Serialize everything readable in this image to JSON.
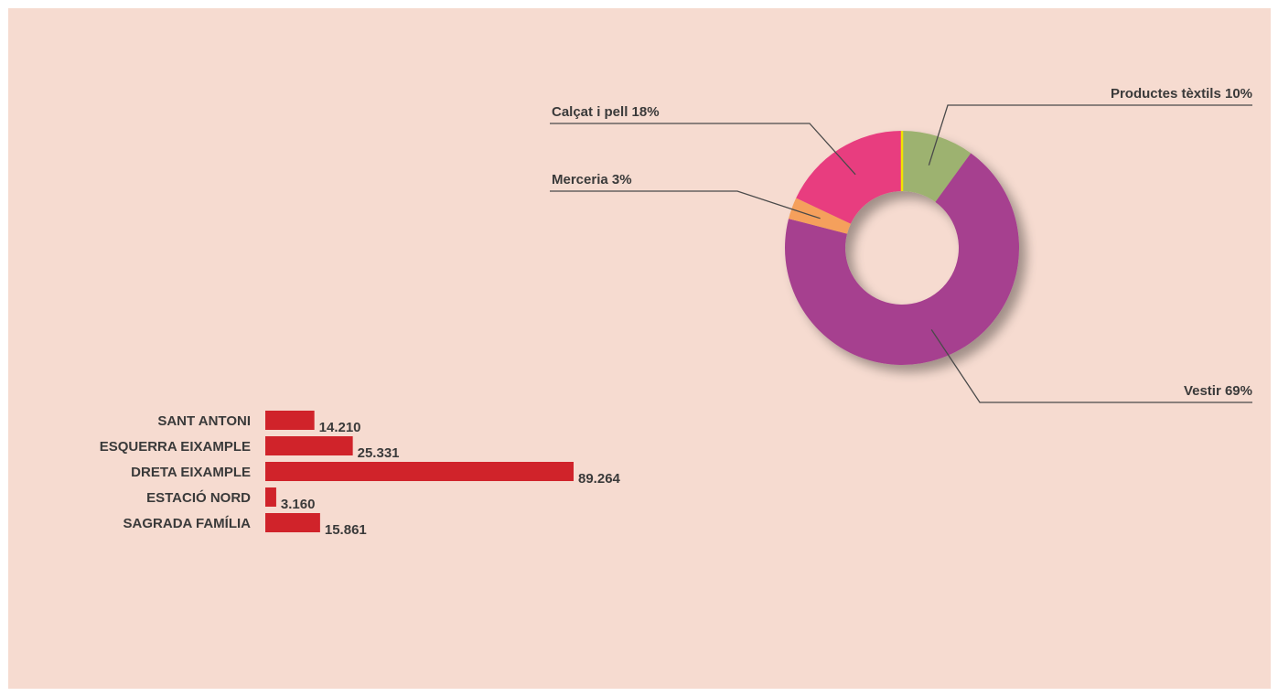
{
  "chart_data": [
    {
      "type": "pie",
      "donut": true,
      "slices": [
        {
          "label": "Productes tèxtils 10%",
          "value": 10,
          "color": "#9db26f"
        },
        {
          "label": "Vestir 69%",
          "value": 69,
          "color": "#a6408f"
        },
        {
          "label": "Merceria 3%",
          "value": 3,
          "color": "#f5a05c"
        },
        {
          "label": "Calçat i pell 18%",
          "value": 18,
          "color": "#e83d7f"
        }
      ],
      "start_marker_color": "#f2e200"
    },
    {
      "type": "bar",
      "orientation": "horizontal",
      "categories": [
        "SANT ANTONI",
        "ESQUERRA EIXAMPLE",
        "DRETA EIXAMPLE",
        "ESTACIÓ NORD",
        "SAGRADA FAMÍLIA"
      ],
      "values": [
        14210,
        25331,
        89264,
        3160,
        15861
      ],
      "value_labels": [
        "14.210",
        "25.331",
        "89.264",
        "3.160",
        "15.861"
      ],
      "color": "#d0232a",
      "xlim": [
        0,
        89264
      ]
    }
  ],
  "colors": {
    "background": "#f6dbd0",
    "label_text": "#3a3a3a",
    "leader_line": "#4a4a4a"
  }
}
